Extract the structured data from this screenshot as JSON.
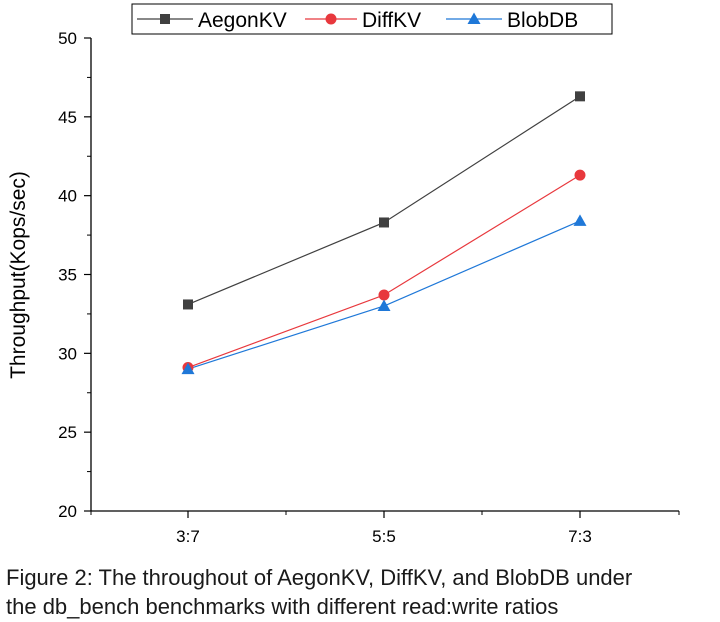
{
  "chart_data": {
    "type": "line",
    "categories": [
      "3:7",
      "5:5",
      "7:3"
    ],
    "series": [
      {
        "name": "AegonKV",
        "values": [
          33.1,
          38.3,
          46.3
        ],
        "color": "#404040",
        "marker": "square"
      },
      {
        "name": "DiffKV",
        "values": [
          29.1,
          33.7,
          41.3
        ],
        "color": "#e8383d",
        "marker": "circle"
      },
      {
        "name": "BlobDB",
        "values": [
          29.0,
          33.0,
          38.4
        ],
        "color": "#1f78d8",
        "marker": "triangle"
      }
    ],
    "ylabel": "Throughput(Kops/sec)",
    "xlabel": "",
    "ylim": [
      20,
      50
    ],
    "yticks": [
      20,
      25,
      30,
      35,
      40,
      45,
      50
    ],
    "grid": false,
    "legend_position": "top"
  },
  "caption": {
    "line1": "Figure 2: The throughout of AegonKV, DiffKV, and BlobDB under",
    "line2": "the db_bench benchmarks with different read:write ratios"
  }
}
